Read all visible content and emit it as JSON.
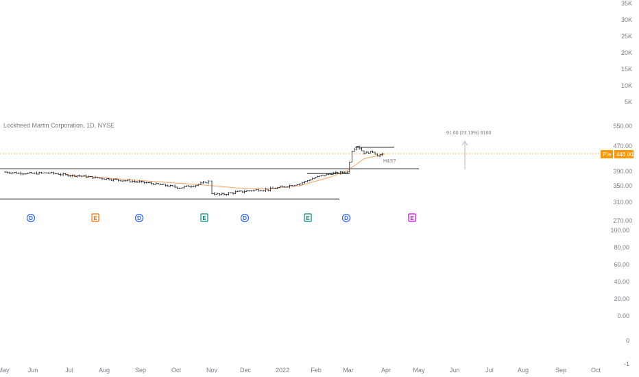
{
  "chart_data": {
    "type": "candlestick",
    "title": "Lockheed Martin Corporation, 1D, NYSE",
    "price_axis": {
      "upper_ticks": [
        "35K",
        "30K",
        "25K",
        "20K",
        "15K",
        "10K",
        "5K"
      ],
      "main_ticks": [
        550,
        470,
        390,
        350,
        310,
        270
      ],
      "lower_ticks": [
        "100.00",
        "80.00",
        "60.00",
        "40.00",
        "20.00",
        "0.00",
        "0",
        "-1"
      ]
    },
    "x_axis": {
      "ticks": [
        "May",
        "Jun",
        "Jul",
        "Aug",
        "Sep",
        "Oct",
        "Nov",
        "Dec",
        "2022",
        "Feb",
        "Mar",
        "Apr",
        "May",
        "Jun",
        "Jul",
        "Aug",
        "Sep",
        "Oct"
      ]
    },
    "price_badge": {
      "label": "Pre",
      "value": "446.00",
      "color": "#ff9800"
    },
    "series": [
      {
        "name": "price",
        "points": [
          [
            "2021-05-03",
            388
          ],
          [
            "2021-05-17",
            385
          ],
          [
            "2021-05-31",
            384
          ],
          [
            "2021-06-14",
            386
          ],
          [
            "2021-06-28",
            380
          ],
          [
            "2021-07-12",
            377
          ],
          [
            "2021-07-26",
            372
          ],
          [
            "2021-08-09",
            367
          ],
          [
            "2021-08-23",
            363
          ],
          [
            "2021-09-06",
            358
          ],
          [
            "2021-09-20",
            352
          ],
          [
            "2021-10-04",
            345
          ],
          [
            "2021-10-18",
            352
          ],
          [
            "2021-10-29",
            362
          ],
          [
            "2021-11-01",
            332
          ],
          [
            "2021-11-08",
            328
          ],
          [
            "2021-11-22",
            334
          ],
          [
            "2021-12-06",
            339
          ],
          [
            "2021-12-20",
            341
          ],
          [
            "2022-01-03",
            348
          ],
          [
            "2022-01-17",
            356
          ],
          [
            "2022-01-31",
            373
          ],
          [
            "2022-02-14",
            384
          ],
          [
            "2022-02-28",
            388
          ],
          [
            "2022-03-04",
            455
          ],
          [
            "2022-03-08",
            470
          ],
          [
            "2022-03-14",
            448
          ],
          [
            "2022-03-21",
            452
          ],
          [
            "2022-03-25",
            440
          ],
          [
            "2022-03-31",
            447
          ]
        ]
      },
      {
        "name": "moving-average",
        "color": "#f7a35c",
        "points": [
          [
            "2021-06-28",
            380
          ],
          [
            "2021-08-09",
            370
          ],
          [
            "2021-09-20",
            360
          ],
          [
            "2021-10-18",
            354
          ],
          [
            "2021-11-22",
            345
          ],
          [
            "2021-12-20",
            342
          ],
          [
            "2022-01-17",
            350
          ],
          [
            "2022-02-14",
            375
          ],
          [
            "2022-02-28",
            392
          ],
          [
            "2022-03-14",
            430
          ],
          [
            "2022-03-31",
            444
          ]
        ]
      }
    ],
    "annotations": {
      "horizontal_levels": [
        466,
        398,
        318
      ],
      "measure_label": "91.60 (23.13%) 9160",
      "pattern_label": "H&S?",
      "current_price_line": 446
    },
    "events": [
      {
        "letter": "D",
        "color": "#2962ff"
      },
      {
        "letter": "E",
        "color": "#ff6d00"
      },
      {
        "letter": "D",
        "color": "#2962ff"
      },
      {
        "letter": "E",
        "color": "#00897b"
      },
      {
        "letter": "D",
        "color": "#2962ff"
      },
      {
        "letter": "E",
        "color": "#00897b"
      },
      {
        "letter": "D",
        "color": "#2962ff"
      },
      {
        "letter": "E",
        "color": "#d500f9"
      }
    ]
  }
}
